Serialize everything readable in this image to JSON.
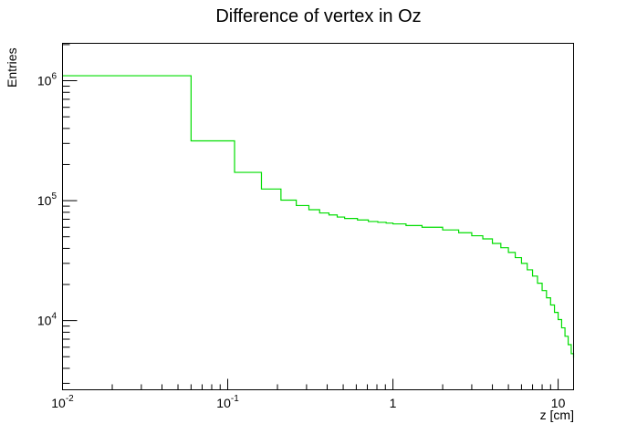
{
  "chart_data": {
    "type": "line",
    "title": "Difference of vertex in Oz",
    "xlabel": "z [cm]",
    "ylabel": "Entries",
    "x_scale": "log",
    "y_scale": "log",
    "xlim": [
      0.01,
      12.4
    ],
    "ylim": [
      2650,
      2050000
    ],
    "grid": false,
    "legend": "none",
    "series_color": "#00dd00",
    "x_ticks": [
      {
        "value": 0.01,
        "base": "10",
        "exp": "-2"
      },
      {
        "value": 0.1,
        "base": "10",
        "exp": "-1"
      },
      {
        "value": 1,
        "base": "1",
        "exp": ""
      },
      {
        "value": 10,
        "base": "10",
        "exp": ""
      }
    ],
    "y_ticks": [
      {
        "value": 10000,
        "base": "10",
        "exp": "4"
      },
      {
        "value": 100000,
        "base": "10",
        "exp": "5"
      },
      {
        "value": 1000000,
        "base": "10",
        "exp": "6"
      }
    ],
    "series": [
      {
        "x": [
          0.01,
          0.06,
          0.11,
          0.16,
          0.21,
          0.26,
          0.31,
          0.36,
          0.41,
          0.46,
          0.51,
          0.61,
          0.71,
          0.81,
          0.91,
          1.0,
          1.2,
          1.5,
          2.0,
          2.5,
          3.0,
          3.5,
          4.0,
          4.5,
          5.0,
          5.5,
          6.0,
          6.5,
          7.0,
          7.5,
          8.0,
          8.5,
          9.0,
          9.5,
          10.0,
          10.5,
          11.0,
          11.5,
          12.0,
          12.4
        ],
        "y": [
          1100000,
          315000,
          172000,
          125000,
          101000,
          91000,
          84000,
          79000,
          76000,
          73000,
          71000,
          69000,
          67000,
          66000,
          65000,
          64000,
          62000,
          60000,
          57000,
          54000,
          51000,
          48000,
          44000,
          40500,
          37000,
          33500,
          30000,
          26500,
          23500,
          20500,
          17800,
          15500,
          13500,
          11700,
          10200,
          8700,
          7400,
          6300,
          5300,
          4900
        ]
      }
    ]
  }
}
